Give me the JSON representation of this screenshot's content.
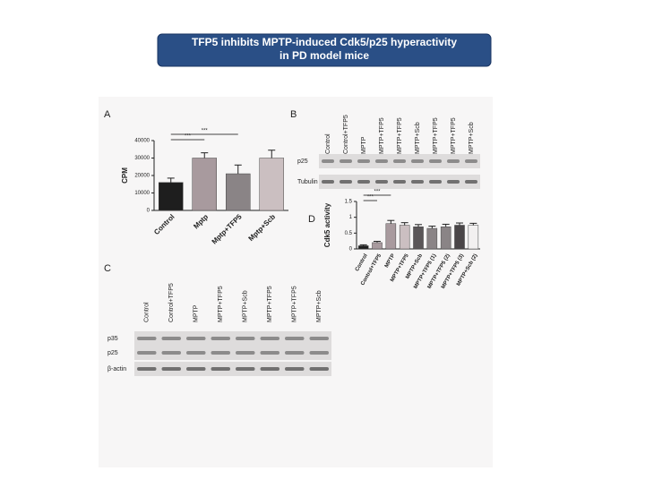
{
  "title_lines": [
    "TFP5 inhibits MPTP-induced Cdk5/p25 hyperactivity",
    "in PD model mice"
  ],
  "panels": [
    "A",
    "B",
    "C",
    "D"
  ],
  "chart_data": [
    {
      "type": "bar",
      "ylabel": "CPM",
      "categories": [
        "Control",
        "Mptp",
        "Mptp+TFP5",
        "Mptp+Scb"
      ],
      "values": [
        16000,
        30000,
        21000,
        30000
      ],
      "errors": [
        2500,
        3000,
        5000,
        4500
      ],
      "colors": [
        "#1e1e1e",
        "#a89a9e",
        "#8a8486",
        "#cbbfc1"
      ],
      "ylim": [
        0,
        40000
      ],
      "yticks": [
        0,
        10000,
        20000,
        30000,
        40000
      ],
      "annotations": [
        "***",
        "***"
      ]
    },
    {
      "type": "bar",
      "ylabel": "Cdk5 activity",
      "categories": [
        "Control",
        "Control+TFP5",
        "MPTP",
        "MPTP+TFP5",
        "MPTP+Scb",
        "MPTP+TFP5 (1)",
        "MPTP+TFP5 (2)",
        "MPTP+TFP5 (3)",
        "MPTP+Scb (2)"
      ],
      "values": [
        0.1,
        0.2,
        0.8,
        0.75,
        0.7,
        0.65,
        0.7,
        0.75,
        0.75
      ],
      "errors": [
        0.03,
        0.04,
        0.1,
        0.08,
        0.07,
        0.07,
        0.08,
        0.07,
        0.06
      ],
      "colors": [
        "#1e1e1e",
        "#a89a9e",
        "#a89a9e",
        "#cbbfc1",
        "#5a5658",
        "#8a8486",
        "#8a8486",
        "#4a4648",
        "#f2f0f0"
      ],
      "ylim": [
        0,
        1.5
      ],
      "yticks": [
        0,
        0.5,
        1,
        1.5
      ],
      "annotations": [
        "***",
        "***"
      ]
    }
  ],
  "blot_b": {
    "lanes": [
      "Control",
      "Control+TFP5",
      "MPTP",
      "MPTP+TFP5",
      "MPTP+TFP5",
      "MPTP+Scb",
      "MPTP+TFP5",
      "MPTP+TFP5",
      "MPTP+Scb"
    ],
    "rows": [
      "p25",
      "Tubulin"
    ]
  },
  "blot_c": {
    "lanes": [
      "Control",
      "Control+TFP5",
      "MPTP",
      "MPTP+TFP5",
      "MPTP+Scb",
      "MPTP+TFP5",
      "MPTP+TFP5",
      "MPTP+Scb"
    ],
    "rows": [
      "p35",
      "p25",
      "β-actin"
    ]
  }
}
